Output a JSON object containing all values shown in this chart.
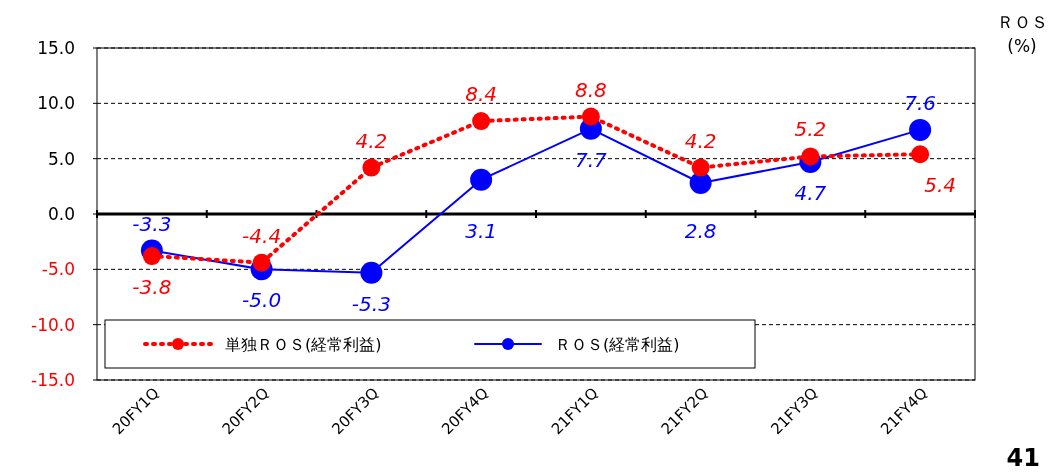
{
  "chart_data": {
    "type": "line",
    "ylabel": "ＲＯＳ\n(%)",
    "categories": [
      "20FY1Q",
      "20FY2Q",
      "20FY3Q",
      "20FY4Q",
      "21FY1Q",
      "21FY2Q",
      "21FY3Q",
      "21FY4Q"
    ],
    "series": [
      {
        "name": "単独ＲＯＳ(経常利益)",
        "color": "#ff0000",
        "line_style": "dotted",
        "values": [
          -3.8,
          -4.4,
          4.2,
          8.4,
          8.8,
          4.2,
          5.2,
          5.4
        ],
        "value_labels": [
          "-3.8",
          "-4.4",
          "4.2",
          "8.4",
          "8.8",
          "4.2",
          "5.2",
          "5.4"
        ]
      },
      {
        "name": "ＲＯＳ(経常利益)",
        "color": "#0000ff",
        "line_style": "solid",
        "values": [
          -3.3,
          -5.0,
          -5.3,
          3.1,
          7.7,
          2.8,
          4.7,
          7.6
        ],
        "value_labels": [
          "-3.3",
          "-5.0",
          "-5.3",
          "3.1",
          "7.7",
          "2.8",
          "4.7",
          "7.6"
        ]
      }
    ],
    "ylim": [
      -15,
      15
    ],
    "yticks": [
      {
        "value": -15,
        "label": "-15.0"
      },
      {
        "value": -10,
        "label": "-10.0"
      },
      {
        "value": -5,
        "label": "-5.0"
      },
      {
        "value": 0,
        "label": "0.0"
      },
      {
        "value": 5,
        "label": "5.0"
      },
      {
        "value": 10,
        "label": "10.0"
      },
      {
        "value": 15,
        "label": "15.0"
      }
    ],
    "grid": "y",
    "legend": "bottom left",
    "marker": "circle",
    "annotations": [
      "41"
    ]
  }
}
